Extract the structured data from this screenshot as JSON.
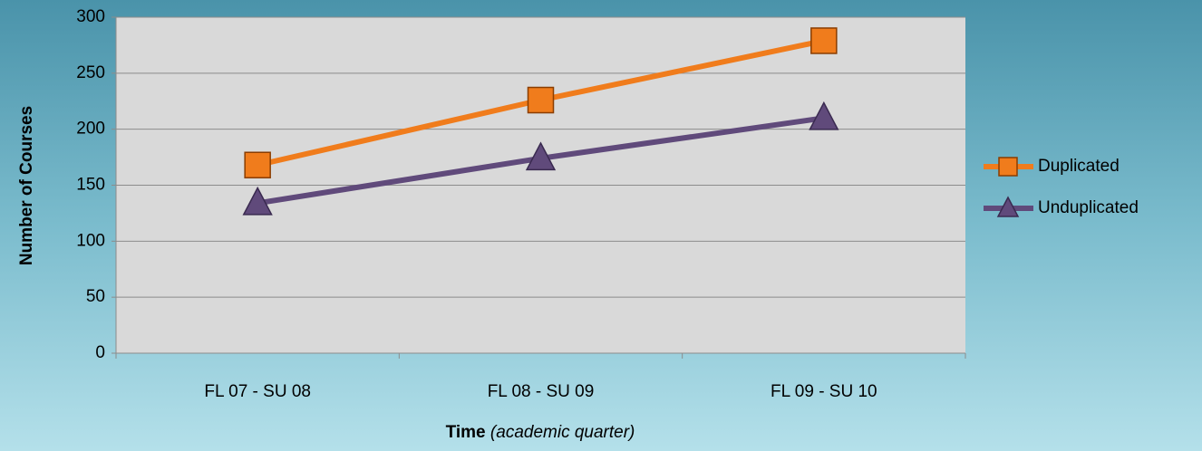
{
  "chart_data": {
    "type": "line",
    "ylabel": "Number of Courses",
    "xlabel": "Time",
    "xlabel_note": "(academic quarter)",
    "categories": [
      "FL 07 - SU 08",
      "FL 08 - SU 09",
      "FL 09 - SU 10"
    ],
    "series": [
      {
        "name": "Duplicated",
        "color": "#f07c1c",
        "marker": "square",
        "values": [
          168,
          226,
          279
        ]
      },
      {
        "name": "Unduplicated",
        "color": "#604a7b",
        "marker": "triangle",
        "values": [
          134,
          174,
          210
        ]
      }
    ],
    "ylim": [
      0,
      300
    ],
    "yticks": [
      0,
      50,
      100,
      150,
      200,
      250,
      300
    ],
    "grid": true,
    "legend": "right"
  }
}
